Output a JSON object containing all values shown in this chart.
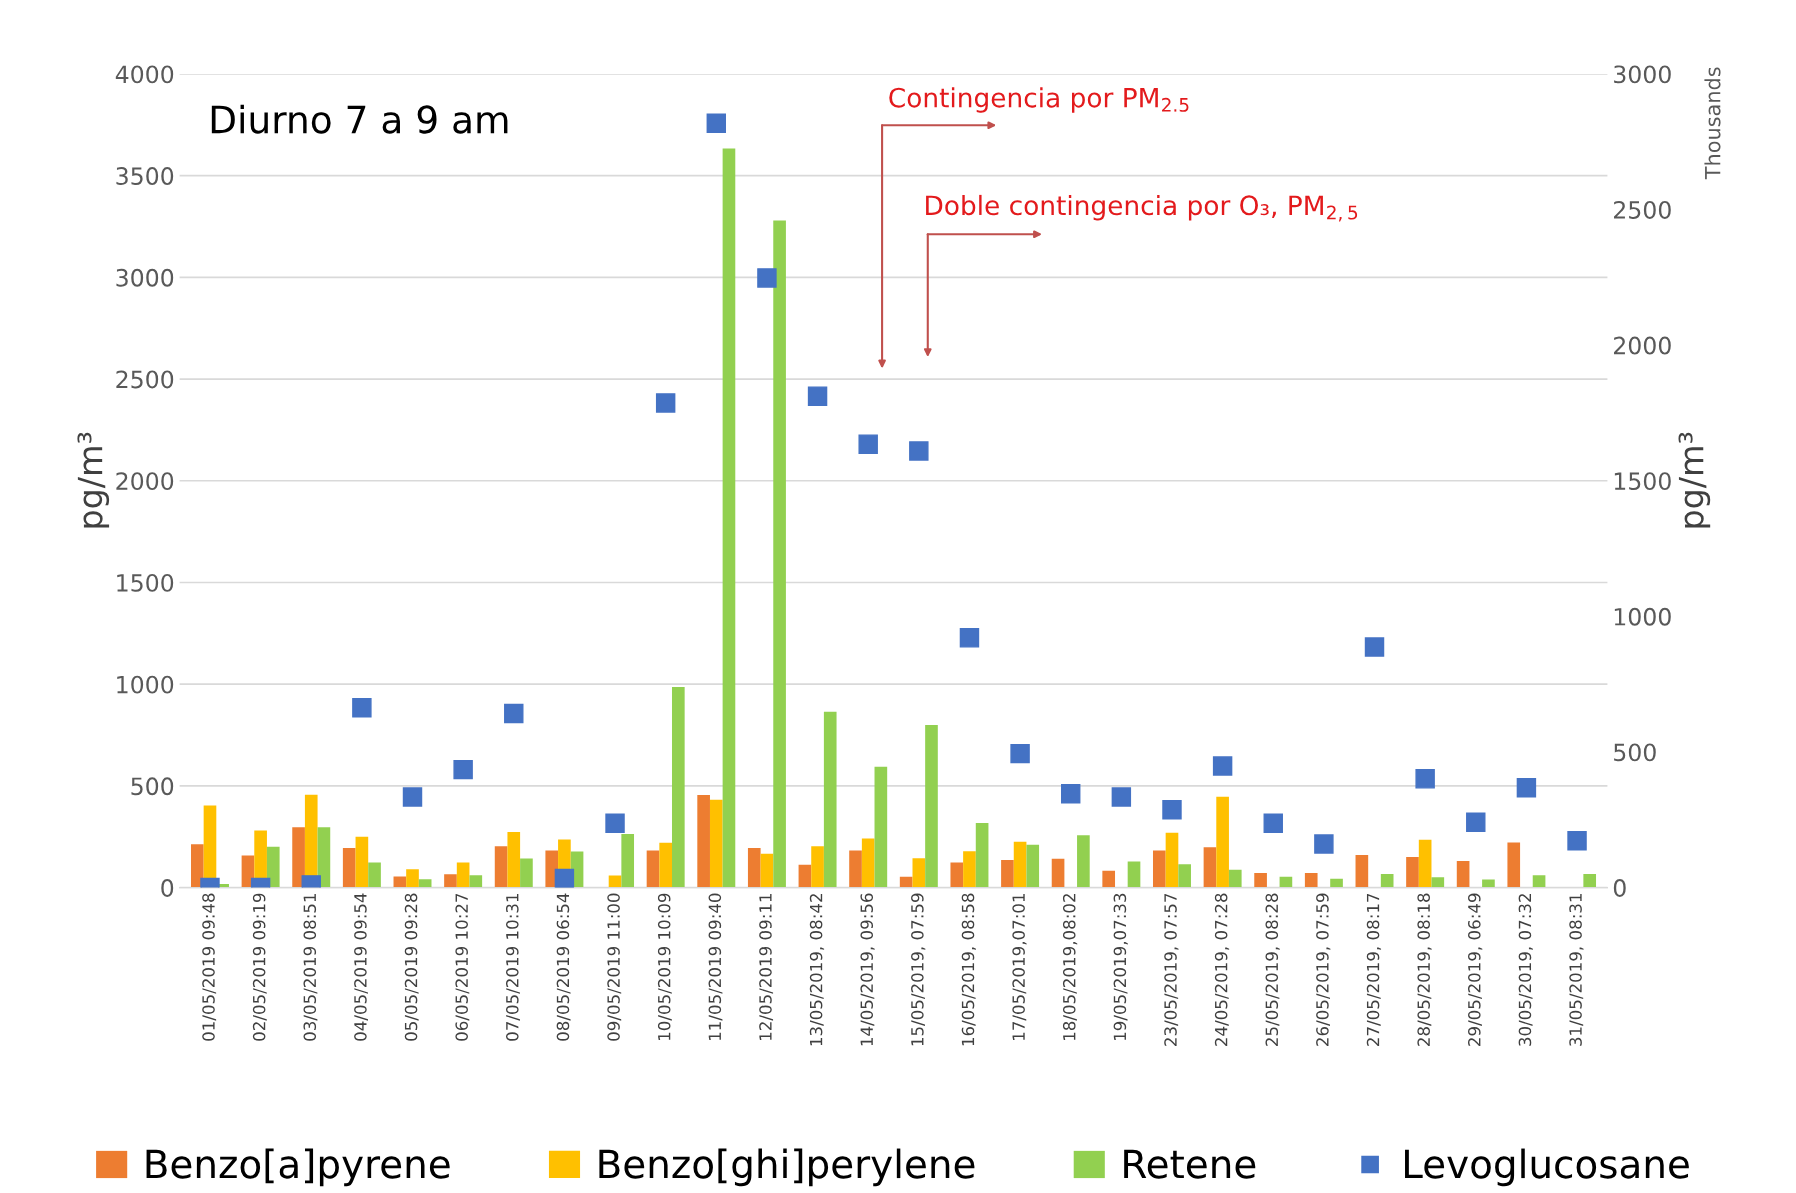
{
  "chart_data": {
    "type": "bar",
    "categories": [
      "01/05/2019 09:48",
      "02/05/2019 09:19",
      "03/05/2019 08:51",
      "04/05/2019 09:54",
      "05/05/2019 09:28",
      "06/05/2019 10:27",
      "07/05/2019 10:31",
      "08/05/2019 06:54",
      "09/05/2019 11:00",
      "10/05/2019 10:09",
      "11/05/2019 09:40",
      "12/05/2019 09:11",
      "13/05/2019, 08:42",
      "14/05/2019, 09:56",
      "15/05/2019, 07:59",
      "16/05/2019, 08:58",
      "17/05/2019,07:01",
      "18/05/2019,08:02",
      "19/05/2019,07:33",
      "23/05/2019, 07:57",
      "24/05/2019, 07:28",
      "25/05/2019, 08:28",
      "26/05/2019, 07:59",
      "27/05/2019, 08:17",
      "28/05/2019, 08:18",
      "29/05/2019, 06:49",
      "30/05/2019, 07:32",
      "31/05/2019, 08:31"
    ],
    "series": [
      {
        "name": "Benzo[a]pyrene",
        "color": "#ed7d31",
        "values": [
          213,
          158,
          297,
          195,
          55,
          66,
          203,
          182,
          2,
          182,
          455,
          195,
          112,
          182,
          53,
          123,
          136,
          142,
          83,
          182,
          198,
          72,
          72,
          160,
          150,
          131,
          222,
          null
        ]
      },
      {
        "name": "Benzo[ghi]perylene",
        "color": "#ffc000",
        "values": [
          404,
          281,
          457,
          250,
          90,
          123,
          273,
          236,
          59,
          221,
          432,
          166,
          203,
          241,
          144,
          179,
          225,
          null,
          null,
          270,
          447,
          null,
          null,
          null,
          235,
          null,
          null,
          null
        ]
      },
      {
        "name": "Retene",
        "color": "#92d050",
        "values": [
          18,
          201,
          297,
          123,
          41,
          61,
          143,
          178,
          264,
          986,
          3634,
          3279,
          864,
          594,
          799,
          318,
          211,
          257,
          128,
          115,
          88,
          53,
          43,
          67,
          51,
          40,
          61,
          67
        ]
      },
      {
        "name": "Levoglucosane",
        "color": "#4472c4",
        "type": "scatter",
        "axis": "y2",
        "marker": "square",
        "values": [
          0,
          0,
          10,
          663,
          334,
          435,
          642,
          34,
          237,
          1787,
          2818,
          2248,
          1812,
          1635,
          1610,
          921,
          494,
          346,
          334,
          287,
          448,
          237,
          161,
          887,
          401,
          241,
          368,
          173
        ]
      }
    ],
    "ylabel": "pg/m³",
    "y2label": "pg/m³",
    "ylim": [
      0,
      4000
    ],
    "yticks": [
      0,
      500,
      1000,
      1500,
      2000,
      2500,
      3000,
      3500,
      4000
    ],
    "y2lim": [
      0,
      3000
    ],
    "y2ticks": [
      0,
      500,
      1000,
      1500,
      2000,
      2500,
      3000
    ],
    "grid": "y",
    "legend": "bottom",
    "annotations": [
      "Diurno 7 a 9 am",
      "Thousands",
      "Contingencia por PM$_{2.5}$",
      "Doble contingencia por O₃, PM$_{2,5}$"
    ]
  }
}
